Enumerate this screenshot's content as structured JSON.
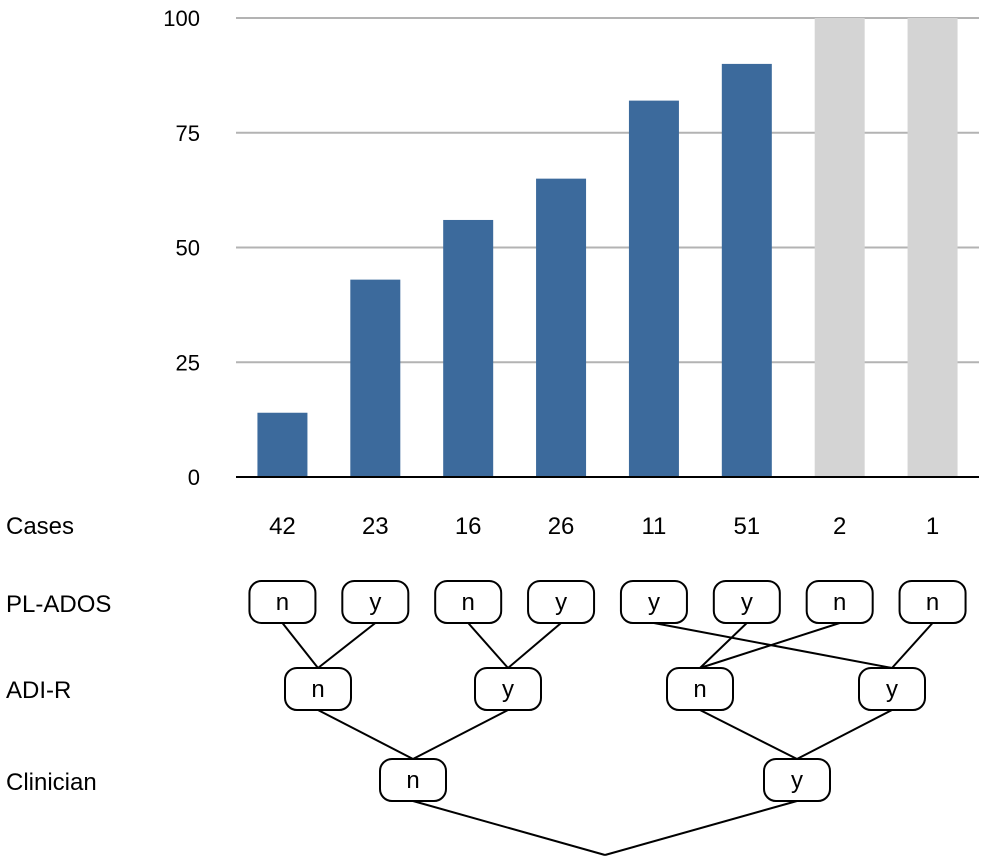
{
  "chart_data": {
    "type": "bar",
    "categories": [
      "42",
      "23",
      "16",
      "26",
      "11",
      "51",
      "2",
      "1"
    ],
    "values": [
      14,
      43,
      56,
      65,
      82,
      90,
      100,
      100
    ],
    "bar_colors": [
      "#3c6a9c",
      "#3c6a9c",
      "#3c6a9c",
      "#3c6a9c",
      "#3c6a9c",
      "#3c6a9c",
      "#d4d4d4",
      "#d4d4d4"
    ],
    "ylim": [
      0,
      100
    ],
    "yticks": [
      0,
      25,
      50,
      75,
      100
    ],
    "grid": true
  },
  "rows": {
    "cases": "Cases",
    "pl_ados": "PL-ADOS",
    "adi_r": "ADI-R",
    "clinician": "Clinician"
  },
  "tree": {
    "pl_ados": [
      "n",
      "y",
      "n",
      "y",
      "y",
      "y",
      "n",
      "n"
    ],
    "adi_r": [
      "n",
      "y",
      "n",
      "y"
    ],
    "clinician": [
      "n",
      "y"
    ]
  },
  "colors": {
    "bar": "#3c6a9c",
    "bar_muted": "#d4d4d4",
    "grid": "#b3b3b3"
  }
}
